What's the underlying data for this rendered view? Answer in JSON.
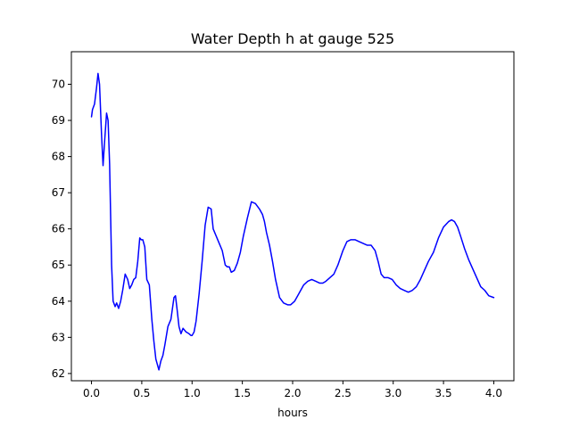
{
  "chart_data": {
    "type": "line",
    "title": "Water Depth h at gauge 525",
    "xlabel": "hours",
    "ylabel": "",
    "xlim": [
      -0.2,
      4.2
    ],
    "ylim": [
      61.8,
      70.9
    ],
    "xticks": [
      0.0,
      0.5,
      1.0,
      1.5,
      2.0,
      2.5,
      3.0,
      3.5,
      4.0
    ],
    "xtick_labels": [
      "0.0",
      "0.5",
      "1.0",
      "1.5",
      "2.0",
      "2.5",
      "3.0",
      "3.5",
      "4.0"
    ],
    "yticks": [
      62,
      63,
      64,
      65,
      66,
      67,
      68,
      69,
      70
    ],
    "ytick_labels": [
      "62",
      "63",
      "64",
      "65",
      "66",
      "67",
      "68",
      "69",
      "70"
    ],
    "grid": false,
    "series": [
      {
        "color": "#0000ff",
        "x": [
          0.0,
          0.01,
          0.03,
          0.05,
          0.065,
          0.08,
          0.1,
          0.115,
          0.13,
          0.15,
          0.165,
          0.18,
          0.2,
          0.215,
          0.235,
          0.25,
          0.27,
          0.29,
          0.31,
          0.335,
          0.36,
          0.38,
          0.4,
          0.42,
          0.44,
          0.46,
          0.48,
          0.495,
          0.51,
          0.53,
          0.55,
          0.575,
          0.6,
          0.62,
          0.64,
          0.67,
          0.69,
          0.71,
          0.73,
          0.76,
          0.79,
          0.82,
          0.835,
          0.85,
          0.87,
          0.89,
          0.91,
          0.94,
          0.97,
          0.99,
          1.0,
          1.02,
          1.04,
          1.07,
          1.1,
          1.13,
          1.16,
          1.19,
          1.21,
          1.24,
          1.27,
          1.3,
          1.33,
          1.35,
          1.37,
          1.39,
          1.42,
          1.45,
          1.48,
          1.51,
          1.55,
          1.59,
          1.63,
          1.67,
          1.7,
          1.72,
          1.74,
          1.77,
          1.8,
          1.83,
          1.87,
          1.91,
          1.95,
          1.98,
          2.0,
          2.02,
          2.05,
          2.08,
          2.11,
          2.15,
          2.19,
          2.23,
          2.27,
          2.3,
          2.33,
          2.37,
          2.41,
          2.45,
          2.5,
          2.54,
          2.58,
          2.62,
          2.66,
          2.7,
          2.74,
          2.78,
          2.82,
          2.85,
          2.88,
          2.91,
          2.95,
          2.99,
          3.03,
          3.07,
          3.11,
          3.15,
          3.19,
          3.23,
          3.27,
          3.31,
          3.35,
          3.4,
          3.45,
          3.5,
          3.55,
          3.58,
          3.61,
          3.64,
          3.67,
          3.71,
          3.75,
          3.79,
          3.83,
          3.87,
          3.91,
          3.95,
          4.0
        ],
        "values": [
          69.1,
          69.3,
          69.45,
          69.9,
          70.3,
          70.0,
          68.6,
          67.75,
          68.4,
          69.2,
          69.0,
          67.8,
          65.0,
          64.0,
          63.85,
          63.95,
          63.8,
          64.0,
          64.3,
          64.75,
          64.6,
          64.35,
          64.45,
          64.6,
          64.65,
          65.1,
          65.75,
          65.7,
          65.7,
          65.5,
          64.6,
          64.45,
          63.5,
          62.9,
          62.4,
          62.1,
          62.35,
          62.5,
          62.8,
          63.3,
          63.5,
          64.1,
          64.15,
          63.8,
          63.3,
          63.1,
          63.25,
          63.15,
          63.1,
          63.05,
          63.05,
          63.15,
          63.45,
          64.2,
          65.1,
          66.1,
          66.6,
          66.55,
          66.0,
          65.8,
          65.6,
          65.4,
          65.0,
          64.95,
          64.95,
          64.8,
          64.85,
          65.05,
          65.35,
          65.8,
          66.3,
          66.75,
          66.7,
          66.55,
          66.4,
          66.2,
          65.9,
          65.55,
          65.1,
          64.6,
          64.1,
          63.95,
          63.9,
          63.9,
          63.95,
          64.0,
          64.15,
          64.3,
          64.45,
          64.55,
          64.6,
          64.55,
          64.5,
          64.5,
          64.55,
          64.65,
          64.75,
          65.0,
          65.4,
          65.65,
          65.7,
          65.7,
          65.65,
          65.6,
          65.55,
          65.55,
          65.4,
          65.1,
          64.75,
          64.65,
          64.65,
          64.6,
          64.45,
          64.35,
          64.3,
          64.25,
          64.3,
          64.4,
          64.6,
          64.85,
          65.1,
          65.35,
          65.75,
          66.05,
          66.2,
          66.25,
          66.2,
          66.05,
          65.8,
          65.45,
          65.15,
          64.9,
          64.65,
          64.4,
          64.3,
          64.15,
          64.1
        ]
      }
    ]
  }
}
